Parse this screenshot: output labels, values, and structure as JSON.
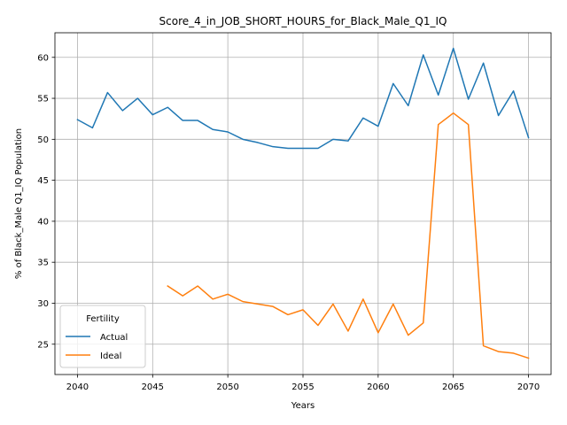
{
  "chart_data": {
    "type": "line",
    "title": "Score_4_in_JOB_SHORT_HOURS_for_Black_Male_Q1_IQ",
    "xlabel": "Years",
    "ylabel": "% of Black_Male Q1_IQ Population",
    "xlim": [
      2038.5,
      2071.5
    ],
    "ylim": [
      21.3,
      63.0
    ],
    "x_ticks": [
      2040,
      2045,
      2050,
      2055,
      2060,
      2065,
      2070
    ],
    "y_ticks": [
      25,
      30,
      35,
      40,
      45,
      50,
      55,
      60
    ],
    "grid": true,
    "legend": {
      "title": "Fertility",
      "position": "lower-left"
    },
    "series": [
      {
        "name": "Actual",
        "color": "#1f77b4",
        "x": [
          2040,
          2041,
          2042,
          2043,
          2044,
          2045,
          2046,
          2047,
          2048,
          2049,
          2050,
          2051,
          2052,
          2053,
          2054,
          2055,
          2056,
          2057,
          2058,
          2059,
          2060,
          2061,
          2062,
          2063,
          2064,
          2065,
          2066,
          2067,
          2068,
          2069,
          2070
        ],
        "values": [
          52.4,
          51.4,
          55.7,
          53.5,
          55.0,
          53.0,
          53.9,
          52.3,
          52.3,
          51.2,
          50.9,
          50.0,
          49.6,
          49.1,
          48.9,
          48.9,
          48.9,
          50.0,
          49.8,
          52.6,
          51.6,
          56.8,
          54.1,
          60.3,
          55.4,
          61.1,
          54.9,
          59.3,
          52.9,
          55.9,
          50.2
        ]
      },
      {
        "name": "Ideal",
        "color": "#ff7f0e",
        "x": [
          2046,
          2047,
          2048,
          2049,
          2050,
          2051,
          2052,
          2053,
          2054,
          2055,
          2056,
          2057,
          2058,
          2059,
          2060,
          2061,
          2062,
          2063,
          2064,
          2065,
          2066,
          2067,
          2068,
          2069,
          2070
        ],
        "values": [
          32.1,
          30.9,
          32.1,
          30.5,
          31.1,
          30.2,
          29.9,
          29.6,
          28.6,
          29.2,
          27.3,
          29.9,
          26.6,
          30.5,
          26.4,
          29.9,
          26.1,
          27.6,
          51.8,
          53.2,
          51.8,
          24.8,
          24.1,
          23.9,
          23.3
        ]
      }
    ]
  }
}
